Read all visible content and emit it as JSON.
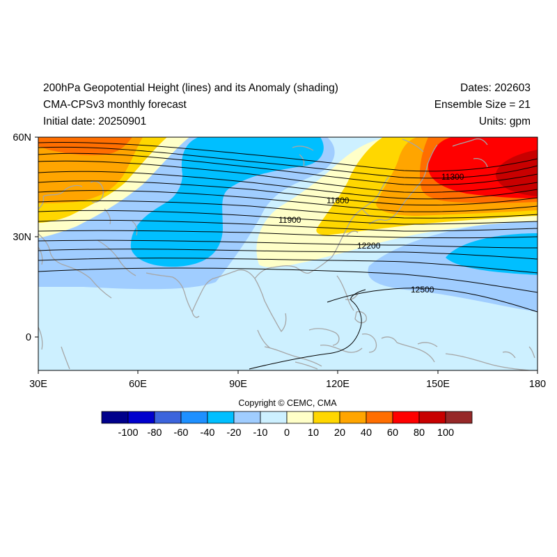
{
  "header": {
    "title": "200hPa Geopotential Height (lines) and its Anomaly (shading)",
    "model": "CMA-CPSv3 monthly forecast",
    "initial_date": "Initial date: 20250901",
    "dates": "Dates: 202603",
    "ensemble": "Ensemble Size = 21",
    "units": "Units: gpm"
  },
  "axes": {
    "lon_ticks": [
      "30E",
      "60E",
      "90E",
      "120E",
      "150E",
      "180"
    ],
    "lat_ticks": [
      "60N",
      "30N",
      "0"
    ]
  },
  "contours": {
    "levels_shown": [
      "11300",
      "11600",
      "11900",
      "12200",
      "12500"
    ]
  },
  "colorbar": {
    "labels": [
      "-100",
      "-80",
      "-60",
      "-40",
      "-20",
      "-10",
      "0",
      "10",
      "20",
      "40",
      "60",
      "80",
      "100"
    ],
    "colors": [
      "#00008b",
      "#0000cd",
      "#3c64dc",
      "#1e90ff",
      "#00bfff",
      "#a0cdff",
      "#cdf0ff",
      "#ffffc8",
      "#ffd700",
      "#ffa500",
      "#ff6e00",
      "#ff0000",
      "#c80000",
      "#962828"
    ]
  },
  "copyright": "Copyright © CEMC, CMA"
}
